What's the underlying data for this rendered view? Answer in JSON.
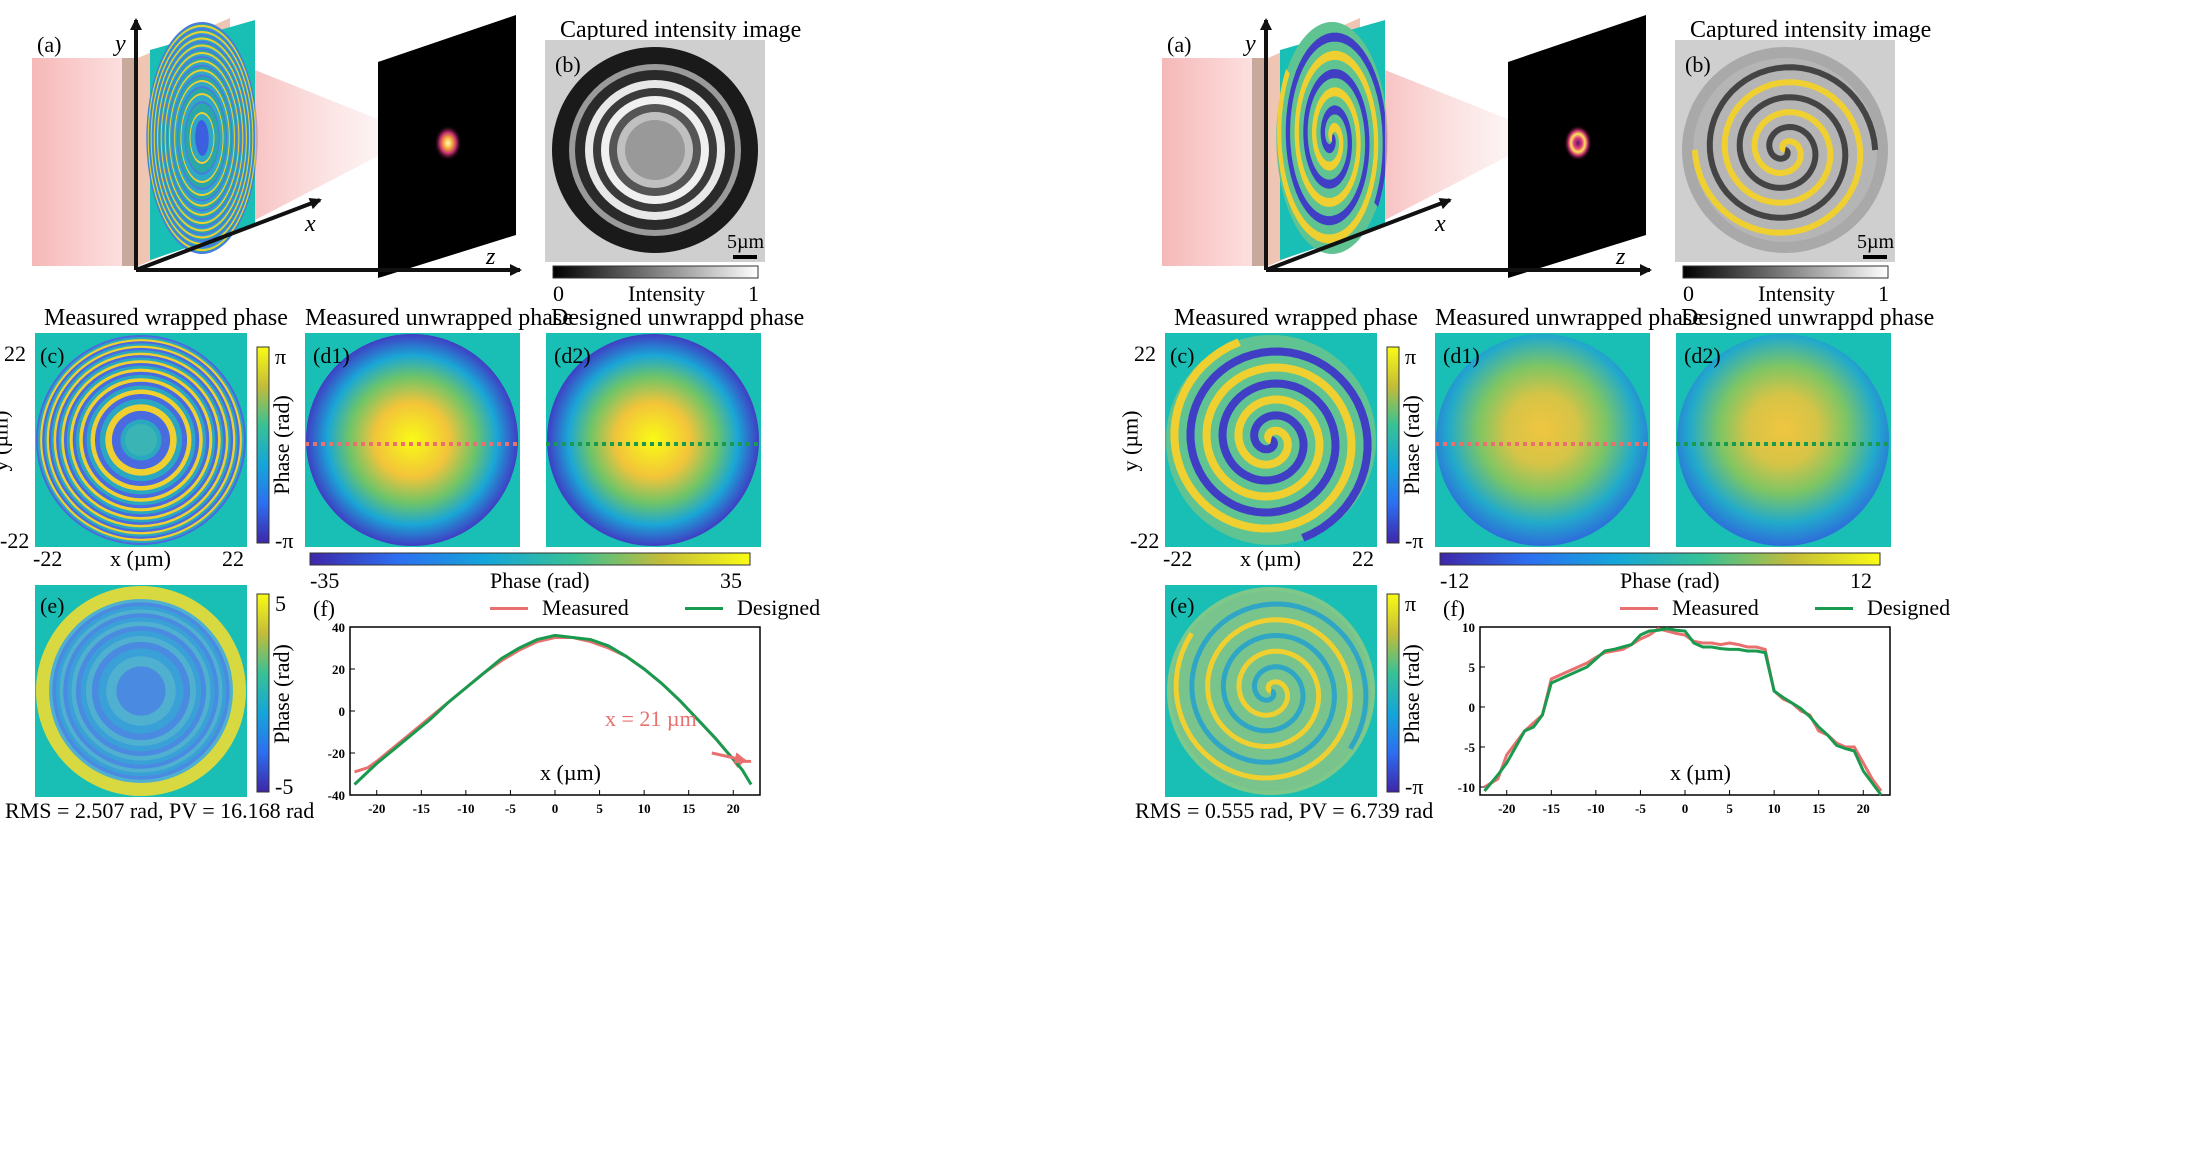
{
  "panels": [
    {
      "id": "left",
      "x0": 0,
      "labels": {
        "a": "(a)",
        "b": "(b)",
        "c": "(c)",
        "d1": "(d1)",
        "d2": "(d2)",
        "e": "(e)",
        "f": "(f)"
      },
      "axes3d": {
        "x": "x",
        "y": "y",
        "z": "z"
      },
      "titles": {
        "b": "Captured intensity image",
        "c": "Measured wrapped phase",
        "d1": "Measured unwrapped phase",
        "d2": "Designed unwrappd phase"
      },
      "scale_bar": "5µm",
      "intensity_bar": {
        "min": "0",
        "label": "Intensity",
        "max": "1"
      },
      "c_axes": {
        "ytop": "22",
        "ybot": "-22",
        "ylabel": "y (µm)",
        "xleft": "-22",
        "xright": "22",
        "xlabel": "x (µm)"
      },
      "c_colorbar": {
        "max": "π",
        "min": "-π",
        "label": "Phase (rad)"
      },
      "d_colorbar": {
        "min": "-35",
        "label": "Phase (rad)",
        "max": "35"
      },
      "e_colorbar": {
        "max": "5",
        "min": "-5",
        "label": "Phase (rad)"
      },
      "e_stats": "RMS = 2.507 rad, PV = 16.168 rad",
      "pattern": "rings"
    },
    {
      "id": "right",
      "x0": 1130,
      "labels": {
        "a": "(a)",
        "b": "(b)",
        "c": "(c)",
        "d1": "(d1)",
        "d2": "(d2)",
        "e": "(e)",
        "f": "(f)"
      },
      "axes3d": {
        "x": "x",
        "y": "y",
        "z": "z"
      },
      "titles": {
        "b": "Captured intensity image",
        "c": "Measured wrapped phase",
        "d1": "Measured unwrapped phase",
        "d2": "Designed unwrappd phase"
      },
      "scale_bar": "5µm",
      "intensity_bar": {
        "min": "0",
        "label": "Intensity",
        "max": "1"
      },
      "c_axes": {
        "ytop": "22",
        "ybot": "-22",
        "ylabel": "y (µm)",
        "xleft": "-22",
        "xright": "22",
        "xlabel": "x (µm)"
      },
      "c_colorbar": {
        "max": "π",
        "min": "-π",
        "label": "Phase (rad)"
      },
      "d_colorbar": {
        "min": "-12",
        "label": "Phase (rad)",
        "max": "12"
      },
      "e_colorbar": {
        "max": "π",
        "min": "-π",
        "label": "Phase (rad)"
      },
      "e_stats": "RMS = 0.555 rad, PV = 6.739 rad",
      "pattern": "spiral"
    }
  ],
  "chart_data": [
    {
      "type": "line",
      "xlabel": "x (µm)",
      "ylabel": "",
      "xlim": [
        -23,
        23
      ],
      "ylim": [
        -40,
        40
      ],
      "xticks": [
        -20,
        -15,
        -10,
        -5,
        0,
        5,
        10,
        15,
        20
      ],
      "yticks": [
        -40,
        -20,
        0,
        20,
        40
      ],
      "annotation": "x = 21 µm",
      "series": [
        {
          "name": "Measured",
          "color": "#e8706f",
          "x": [
            -22.5,
            -21,
            -20,
            -18,
            -16,
            -14,
            -12,
            -10,
            -8,
            -6,
            -4,
            -2,
            0,
            2,
            4,
            6,
            8,
            10,
            12,
            14,
            16,
            18,
            19,
            20,
            20.5,
            21,
            21.5,
            22
          ],
          "y": [
            -29,
            -27,
            -24,
            -17,
            -10,
            -3,
            4,
            11,
            18,
            24,
            29,
            33,
            35,
            35,
            33,
            30,
            26,
            20,
            13,
            5,
            -4,
            -13,
            -18,
            -23,
            -26,
            -24,
            -24,
            -24
          ]
        },
        {
          "name": "Designed",
          "color": "#1a9a4f",
          "x": [
            -22.5,
            -21,
            -20,
            -18,
            -16,
            -14,
            -12,
            -10,
            -8,
            -6,
            -4,
            -2,
            0,
            2,
            4,
            6,
            8,
            10,
            12,
            14,
            16,
            18,
            19,
            20,
            21,
            22
          ],
          "y": [
            -35,
            -29,
            -25,
            -18,
            -11,
            -4,
            4,
            11,
            18,
            25,
            30,
            34,
            36,
            35,
            34,
            31,
            26,
            20,
            13,
            5,
            -4,
            -13,
            -18,
            -23,
            -28,
            -35
          ]
        }
      ]
    },
    {
      "type": "line",
      "xlabel": "x (µm)",
      "ylabel": "",
      "xlim": [
        -23,
        23
      ],
      "ylim": [
        -11,
        10
      ],
      "xticks": [
        -20,
        -15,
        -10,
        -5,
        0,
        5,
        10,
        15,
        20
      ],
      "yticks": [
        -10,
        -5,
        0,
        5,
        10
      ],
      "series": [
        {
          "name": "Measured",
          "color": "#e8706f",
          "x": [
            -22.5,
            -21,
            -20,
            -19,
            -18,
            -17,
            -16,
            -15,
            -14,
            -13,
            -12,
            -11,
            -10,
            -9,
            -8,
            -7,
            -6,
            -5,
            -4,
            -3,
            -2,
            -1,
            0,
            1,
            2,
            3,
            4,
            5,
            6,
            7,
            8,
            9,
            10,
            11,
            12,
            13,
            14,
            15,
            16,
            17,
            18,
            19,
            20,
            21,
            22
          ],
          "y": [
            -10,
            -9,
            -6,
            -4.5,
            -3,
            -2,
            -1,
            3.5,
            4,
            4.5,
            5,
            5.5,
            6.2,
            6.8,
            7,
            7.2,
            7.8,
            8.5,
            9,
            9.8,
            9.5,
            9.2,
            9,
            8.2,
            8,
            8,
            7.8,
            8,
            7.8,
            7.5,
            7.5,
            7.2,
            2,
            1,
            0.5,
            -0.5,
            -1,
            -3,
            -3.5,
            -4.5,
            -5,
            -5,
            -7,
            -9,
            -10.5
          ]
        },
        {
          "name": "Designed",
          "color": "#1a9a4f",
          "x": [
            -22.5,
            -21,
            -20,
            -19,
            -18,
            -17,
            -16,
            -15,
            -14,
            -13,
            -12,
            -11,
            -10,
            -9,
            -8,
            -7,
            -6,
            -5,
            -4,
            -3,
            -2,
            -1,
            0,
            1,
            2,
            3,
            4,
            5,
            6,
            7,
            8,
            9,
            10,
            11,
            12,
            13,
            14,
            15,
            16,
            17,
            18,
            19,
            20,
            21,
            22
          ],
          "y": [
            -10.5,
            -8.5,
            -7,
            -5,
            -3,
            -2.5,
            -1,
            3,
            3.5,
            4,
            4.5,
            5,
            6,
            7,
            7.2,
            7.5,
            7.8,
            9,
            9.5,
            9.6,
            9.8,
            9.6,
            9.5,
            8,
            7.5,
            7.5,
            7.3,
            7.2,
            7.2,
            7,
            7,
            6.8,
            2,
            1.2,
            0.5,
            -0.2,
            -1.2,
            -2.5,
            -3.5,
            -4.8,
            -5.2,
            -5.5,
            -8,
            -9.5,
            -11
          ]
        }
      ]
    }
  ]
}
